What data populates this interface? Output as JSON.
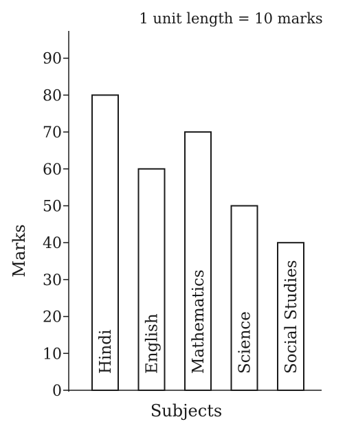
{
  "chart_data": {
    "type": "bar",
    "note": "1 unit length = 10 marks",
    "xlabel": "Subjects",
    "ylabel": "Marks",
    "categories": [
      "Hindi",
      "English",
      "Mathematics",
      "Science",
      "Social Studies"
    ],
    "values": [
      80,
      60,
      70,
      50,
      40
    ],
    "yticks": [
      "0",
      "10",
      "20",
      "30",
      "40",
      "50",
      "60",
      "70",
      "80",
      "90"
    ],
    "ylim": [
      0,
      100
    ],
    "grid": false,
    "bar_fill": "#ffffff",
    "bar_stroke": "#1a1a1a"
  }
}
